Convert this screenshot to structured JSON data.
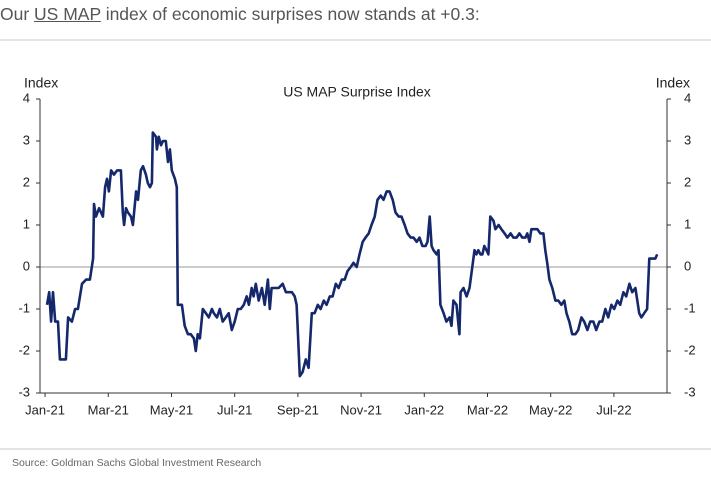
{
  "heading": {
    "prefix": "Our ",
    "link": "US MAP",
    "suffix": " index of economic surprises now stands at +0.3:"
  },
  "chart_data": {
    "type": "line",
    "title": "US MAP Surprise Index",
    "ylabel": "Index",
    "y2label": "Index",
    "xlim": [
      -0.16,
      19.68
    ],
    "xticks": [
      {
        "value": 0,
        "label": "Jan-21"
      },
      {
        "value": 2,
        "label": "Mar-21"
      },
      {
        "value": 4,
        "label": "May-21"
      },
      {
        "value": 6,
        "label": "Jul-21"
      },
      {
        "value": 8,
        "label": "Sep-21"
      },
      {
        "value": 10,
        "label": "Nov-21"
      },
      {
        "value": 12,
        "label": "Jan-22"
      },
      {
        "value": 14,
        "label": "Mar-22"
      },
      {
        "value": 16,
        "label": "May-22"
      },
      {
        "value": 18,
        "label": "Jul-22"
      }
    ],
    "ylim": [
      -3,
      4
    ],
    "yticks": [
      -3,
      -2,
      -1,
      0,
      1,
      2,
      3,
      4
    ],
    "y2lim": [
      -3,
      4
    ],
    "y2ticks": [
      -3,
      -2,
      -1,
      0,
      1,
      2,
      3,
      4
    ],
    "x": [
      0.06,
      0.13,
      0.19,
      0.25,
      0.32,
      0.41,
      0.47,
      0.66,
      0.73,
      0.85,
      0.95,
      1.04,
      1.17,
      1.3,
      1.42,
      1.52,
      1.55,
      1.61,
      1.71,
      1.83,
      1.9,
      1.96,
      2.02,
      2.09,
      2.18,
      2.28,
      2.4,
      2.46,
      2.5,
      2.56,
      2.62,
      2.72,
      2.78,
      2.88,
      2.94,
      3.03,
      3.1,
      3.19,
      3.25,
      3.32,
      3.38,
      3.41,
      3.51,
      3.54,
      3.6,
      3.67,
      3.73,
      3.82,
      3.89,
      3.95,
      4.01,
      4.11,
      4.17,
      4.2,
      4.33,
      4.42,
      4.52,
      4.61,
      4.71,
      4.77,
      4.83,
      4.9,
      4.99,
      5.09,
      5.18,
      5.28,
      5.34,
      5.44,
      5.53,
      5.62,
      5.72,
      5.81,
      5.91,
      6.0,
      6.1,
      6.19,
      6.29,
      6.38,
      6.45,
      6.54,
      6.6,
      6.67,
      6.76,
      6.86,
      6.95,
      7.05,
      7.11,
      7.17,
      7.27,
      7.39,
      7.52,
      7.62,
      7.71,
      7.81,
      7.9,
      7.96,
      7.99,
      8.06,
      8.15,
      8.25,
      8.34,
      8.44,
      8.53,
      8.63,
      8.72,
      8.82,
      8.91,
      9.01,
      9.1,
      9.2,
      9.29,
      9.39,
      9.48,
      9.57,
      9.67,
      9.76,
      9.86,
      9.95,
      10.05,
      10.14,
      10.24,
      10.33,
      10.43,
      10.52,
      10.62,
      10.71,
      10.81,
      10.9,
      11.0,
      11.09,
      11.19,
      11.28,
      11.38,
      11.47,
      11.57,
      11.66,
      11.76,
      11.85,
      11.94,
      12.04,
      12.1,
      12.17,
      12.23,
      12.29,
      12.39,
      12.45,
      12.51,
      12.61,
      12.7,
      12.8,
      12.86,
      12.92,
      13.02,
      13.11,
      13.15,
      13.24,
      13.34,
      13.43,
      13.52,
      13.59,
      13.65,
      13.71,
      13.78,
      13.84,
      13.9,
      13.97,
      14.03,
      14.09,
      14.19,
      14.25,
      14.35,
      14.44,
      14.54,
      14.63,
      14.73,
      14.82,
      14.92,
      15.01,
      15.1,
      15.2,
      15.26,
      15.33,
      15.39,
      15.48,
      15.58,
      15.67,
      15.77,
      15.83,
      15.89,
      15.96,
      16.05,
      16.15,
      16.24,
      16.34,
      16.43,
      16.5,
      16.59,
      16.68,
      16.78,
      16.87,
      16.97,
      17.06,
      17.16,
      17.25,
      17.35,
      17.44,
      17.54,
      17.63,
      17.73,
      17.82,
      17.92,
      18.01,
      18.11,
      18.2,
      18.3,
      18.39,
      18.49,
      18.58,
      18.68,
      18.74,
      18.8,
      18.87,
      18.96,
      19.05,
      19.12,
      19.21,
      19.31,
      19.37
    ],
    "series": [
      {
        "color": "#14286b",
        "values": [
          -0.9,
          -0.6,
          -1.3,
          -0.6,
          -1.3,
          -1.3,
          -2.2,
          -2.2,
          -1.2,
          -1.3,
          -1.0,
          -1.0,
          -0.4,
          -0.3,
          -0.3,
          0.2,
          1.5,
          1.2,
          1.4,
          1.2,
          1.9,
          2.1,
          1.8,
          2.3,
          2.2,
          2.3,
          2.3,
          1.3,
          1.0,
          1.4,
          1.3,
          1.2,
          1.0,
          1.8,
          1.6,
          2.3,
          2.4,
          2.2,
          2.0,
          1.9,
          2.0,
          3.2,
          3.1,
          2.8,
          3.1,
          2.9,
          3.0,
          3.0,
          2.5,
          2.8,
          2.3,
          2.1,
          1.9,
          -0.9,
          -0.9,
          -1.4,
          -1.6,
          -1.6,
          -1.7,
          -2.0,
          -1.6,
          -1.7,
          -1.0,
          -1.1,
          -1.2,
          -1.0,
          -1.1,
          -1.2,
          -1.0,
          -1.3,
          -1.2,
          -1.1,
          -1.5,
          -1.3,
          -1.0,
          -1.0,
          -0.9,
          -0.7,
          -0.9,
          -0.5,
          -0.7,
          -0.4,
          -0.8,
          -0.5,
          -0.9,
          -0.3,
          -1.0,
          -0.5,
          -0.5,
          -0.5,
          -0.4,
          -0.6,
          -0.6,
          -0.6,
          -0.7,
          -0.9,
          -1.4,
          -2.6,
          -2.5,
          -2.2,
          -2.4,
          -1.1,
          -1.1,
          -0.9,
          -1.0,
          -0.8,
          -0.9,
          -0.7,
          -0.7,
          -0.4,
          -0.5,
          -0.3,
          -0.3,
          -0.1,
          0.0,
          0.1,
          0.0,
          0.3,
          0.6,
          0.7,
          0.8,
          1.0,
          1.2,
          1.6,
          1.7,
          1.6,
          1.8,
          1.8,
          1.6,
          1.3,
          1.2,
          1.2,
          1.0,
          0.8,
          0.7,
          0.7,
          0.6,
          0.7,
          0.5,
          0.5,
          0.6,
          1.2,
          0.5,
          0.4,
          0.3,
          0.4,
          -0.9,
          -1.1,
          -1.3,
          -1.2,
          -1.4,
          -0.8,
          -0.9,
          -1.6,
          -0.6,
          -0.5,
          -0.7,
          -0.5,
          0.0,
          0.4,
          0.3,
          0.4,
          0.3,
          0.3,
          0.5,
          0.4,
          0.3,
          1.2,
          1.1,
          0.9,
          1.0,
          0.9,
          0.8,
          0.7,
          0.8,
          0.7,
          0.7,
          0.8,
          0.7,
          0.7,
          0.8,
          0.6,
          0.9,
          0.9,
          0.9,
          0.8,
          0.8,
          0.4,
          0.1,
          -0.3,
          -0.5,
          -0.8,
          -0.8,
          -0.9,
          -0.8,
          -1.1,
          -1.3,
          -1.6,
          -1.6,
          -1.5,
          -1.2,
          -1.3,
          -1.5,
          -1.3,
          -1.3,
          -1.5,
          -1.3,
          -1.3,
          -1.0,
          -1.2,
          -0.9,
          -1.0,
          -0.8,
          -0.9,
          -0.6,
          -0.7,
          -0.4,
          -0.6,
          -0.5,
          -0.8,
          -1.1,
          -1.2,
          -1.1,
          -1.0,
          0.2,
          0.2,
          0.2,
          0.3
        ]
      }
    ]
  },
  "source": "Source: Goldman Sachs Global Investment Research"
}
